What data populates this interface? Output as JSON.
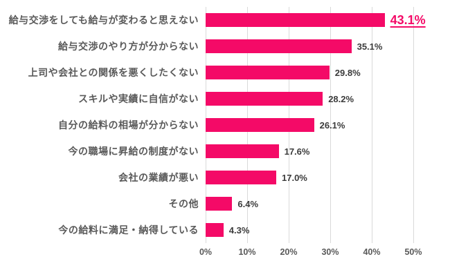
{
  "chart_data": {
    "type": "bar",
    "orientation": "horizontal",
    "title": "",
    "xlabel": "",
    "ylabel": "",
    "categories": [
      "給与交渉をしても給与が変わると思えない",
      "給与交渉のやり方が分からない",
      "上司や会社との関係を悪くしたくない",
      "スキルや実績に自信がない",
      "自分の給料の相場が分からない",
      "今の職場に昇給の制度がない",
      "会社の業績が悪い",
      "その他",
      "今の給料に満足・納得している"
    ],
    "values": [
      43.1,
      35.1,
      29.8,
      28.2,
      26.1,
      17.6,
      17.0,
      6.4,
      4.3
    ],
    "value_labels": [
      "43.1%",
      "35.1%",
      "29.8%",
      "28.2%",
      "26.1%",
      "17.6%",
      "17.0%",
      "6.4%",
      "4.3%"
    ],
    "highlight_index": 0,
    "xlim": [
      0,
      50
    ],
    "x_ticks": [
      {
        "value": 0,
        "label": "0%"
      },
      {
        "value": 10,
        "label": "10%"
      },
      {
        "value": 20,
        "label": "20%"
      },
      {
        "value": 30,
        "label": "30%"
      },
      {
        "value": 40,
        "label": "40%"
      },
      {
        "value": 50,
        "label": "50%"
      }
    ],
    "grid": true,
    "legend": false
  },
  "colors": {
    "bar": "#f40a67",
    "highlight_value": "#f40a67",
    "category_label": "#595959",
    "value_label": "#3b3b3b",
    "axis_tick": "#595959",
    "gridline": "#d9d9d9",
    "background": "#ffffff"
  }
}
